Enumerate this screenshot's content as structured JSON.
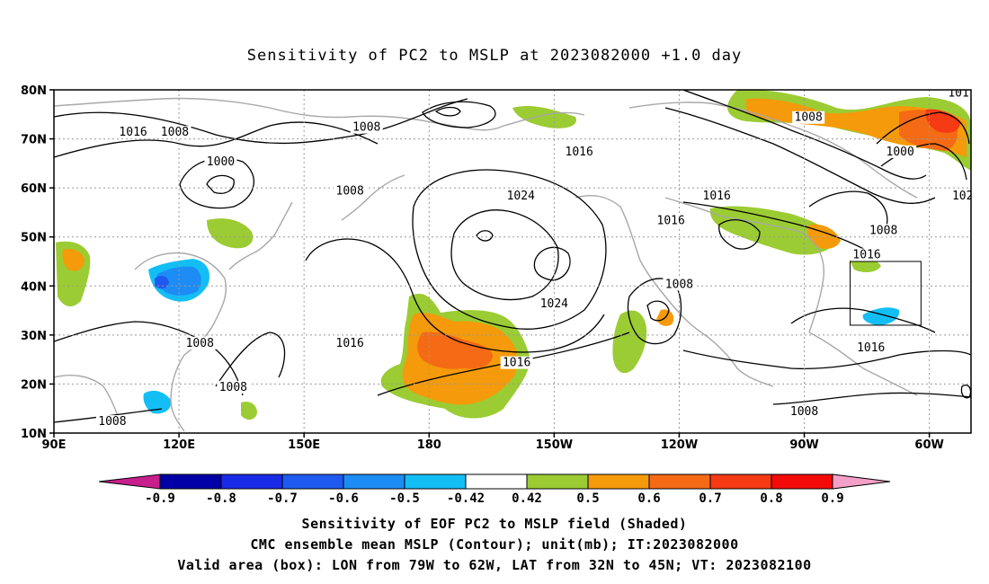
{
  "title": "Sensitivity of PC2 to MSLP at 2023082000 +1.0 day",
  "map": {
    "lon_range": [
      90,
      310
    ],
    "lat_range": [
      10,
      80
    ],
    "lat_ticks": [
      {
        "lat": 80,
        "label": "80N"
      },
      {
        "lat": 70,
        "label": "70N"
      },
      {
        "lat": 60,
        "label": "60N"
      },
      {
        "lat": 50,
        "label": "50N"
      },
      {
        "lat": 40,
        "label": "40N"
      },
      {
        "lat": 30,
        "label": "30N"
      },
      {
        "lat": 20,
        "label": "20N"
      },
      {
        "lat": 10,
        "label": "10N"
      }
    ],
    "lon_ticks": [
      {
        "lon": 90,
        "label": "90E"
      },
      {
        "lon": 120,
        "label": "120E"
      },
      {
        "lon": 150,
        "label": "150E"
      },
      {
        "lon": 180,
        "label": "180"
      },
      {
        "lon": 210,
        "label": "150W"
      },
      {
        "lon": 240,
        "label": "120W"
      },
      {
        "lon": 270,
        "label": "90W"
      },
      {
        "lon": 300,
        "label": "60W"
      }
    ],
    "grid": "dotted",
    "valid_box": {
      "lon_min": 281,
      "lon_max": 298,
      "lat_min": 32,
      "lat_max": 45
    },
    "contour_labels": [
      {
        "text": "1016",
        "lon": 109,
        "lat": 71
      },
      {
        "text": "1008",
        "lon": 119,
        "lat": 71
      },
      {
        "text": "1000",
        "lon": 130,
        "lat": 65
      },
      {
        "text": "1008",
        "lon": 165,
        "lat": 72
      },
      {
        "text": "1008",
        "lon": 161,
        "lat": 59
      },
      {
        "text": "1016",
        "lon": 216,
        "lat": 67
      },
      {
        "text": "1024",
        "lon": 202,
        "lat": 58
      },
      {
        "text": "1016",
        "lon": 249,
        "lat": 58
      },
      {
        "text": "1016",
        "lon": 238,
        "lat": 53
      },
      {
        "text": "1024",
        "lon": 210,
        "lat": 36
      },
      {
        "text": "1008",
        "lon": 271,
        "lat": 74
      },
      {
        "text": "1000",
        "lon": 293,
        "lat": 67
      },
      {
        "text": "1008",
        "lon": 289,
        "lat": 51
      },
      {
        "text": "1016",
        "lon": 285,
        "lat": 46
      },
      {
        "text": "1008",
        "lon": 240,
        "lat": 40
      },
      {
        "text": "1016",
        "lon": 286,
        "lat": 27
      },
      {
        "text": "1008",
        "lon": 125,
        "lat": 28
      },
      {
        "text": "1016",
        "lon": 161,
        "lat": 28
      },
      {
        "text": "1016",
        "lon": 201,
        "lat": 24
      },
      {
        "text": "1008",
        "lon": 133,
        "lat": 19
      },
      {
        "text": "1008",
        "lon": 270,
        "lat": 14
      },
      {
        "text": "1008",
        "lon": 104,
        "lat": 12
      },
      {
        "text": "101",
        "lon": 307,
        "lat": 79
      },
      {
        "text": "102",
        "lon": 308,
        "lat": 58
      }
    ]
  },
  "colorbar": {
    "labels": [
      "-0.9",
      "-0.8",
      "-0.7",
      "-0.6",
      "-0.5",
      "-0.42",
      "0.42",
      "0.5",
      "0.6",
      "0.7",
      "0.8",
      "0.9"
    ],
    "colors": [
      "#0000a6",
      "#1a2be8",
      "#1e5af0",
      "#1e8cf5",
      "#13bef5",
      "#ffffff",
      "#9bcc33",
      "#f59a0a",
      "#f56a14",
      "#f53a14",
      "#f50a0a"
    ],
    "low_end_color": "#c81f8c",
    "high_end_color": "#f5a0c8"
  },
  "caption": {
    "line1": "Sensitivity of EOF PC2 to MSLP field (Shaded)",
    "line2": "CMC ensemble mean MSLP (Contour); unit(mb); IT:2023082000",
    "line3": "Valid area (box): LON from 79W to 62W, LAT from 32N to 45N; VT: 2023082100"
  }
}
